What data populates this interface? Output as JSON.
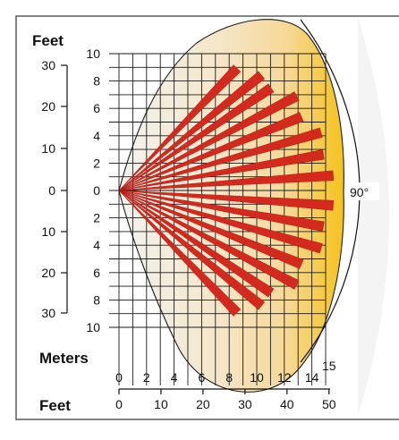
{
  "labels": {
    "feet_top": "Feet",
    "meters": "Meters",
    "feet_bottom": "Feet",
    "angle": "90°"
  },
  "left_feet_ticks": [
    "30",
    "20",
    "10",
    "0",
    "10",
    "20",
    "30"
  ],
  "left_meter_ticks": [
    "10",
    "8",
    "6",
    "4",
    "2",
    "0",
    "2",
    "4",
    "6",
    "8",
    "10"
  ],
  "bottom_meter_ticks": [
    "0",
    "2",
    "4",
    "6",
    "8",
    "10",
    "12",
    "14"
  ],
  "bottom_meter_extra": "15",
  "bottom_feet_ticks": [
    "0",
    "10",
    "20",
    "30",
    "40",
    "50"
  ],
  "colors": {
    "beam": "#d42a1e",
    "beam_outline": "#b01a12",
    "lobe_start": "#f2f2ee",
    "lobe_end": "#f6c21a",
    "grid": "#1a1a1a",
    "frame": "#333333"
  }
}
